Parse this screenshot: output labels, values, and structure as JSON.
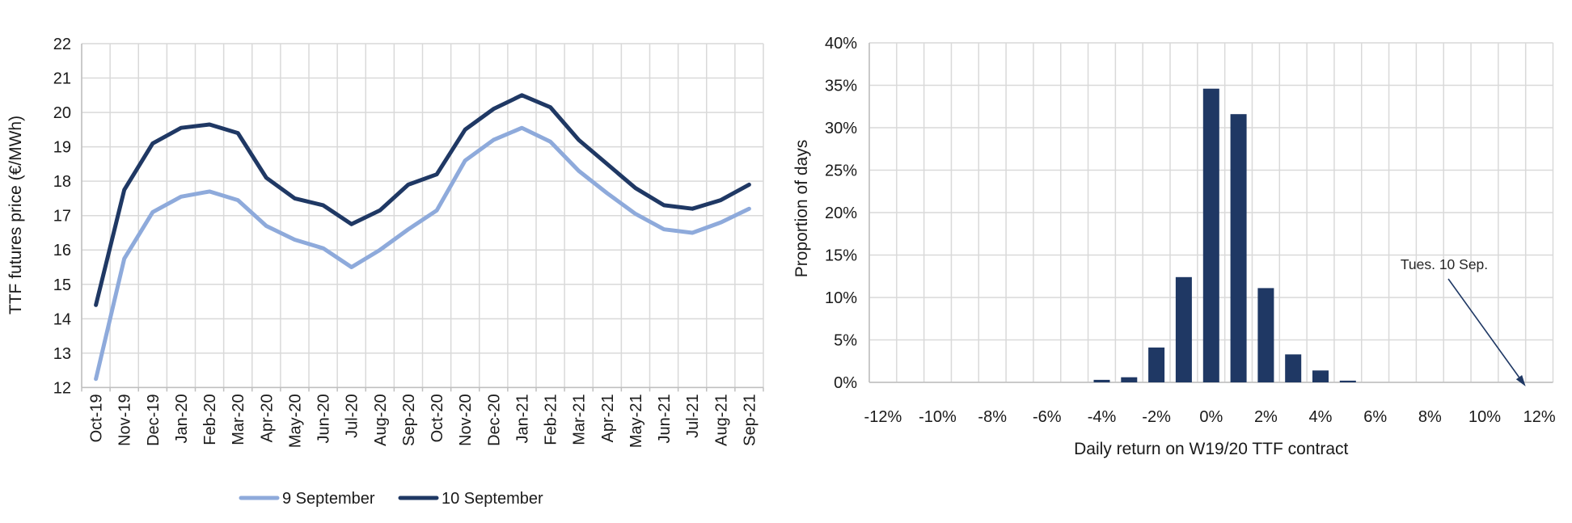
{
  "page": {
    "background": "#FFFFFF"
  },
  "colors": {
    "navy": "#1F3864",
    "light_blue": "#8EAADB",
    "gridline": "#D9D9D9",
    "axis": "#BFBFBF",
    "text": "#1A1A1A",
    "annotation_text": "#262626"
  },
  "chart_data": [
    {
      "type": "line",
      "name": "ttf-futures-price",
      "title": "",
      "xlabel": "",
      "ylabel": "TTF futures price (€/MWh)",
      "ylim": [
        12,
        22
      ],
      "y_tick_step": 1,
      "grid": true,
      "legend_position": "bottom",
      "categories": [
        "Oct-19",
        "Nov-19",
        "Dec-19",
        "Jan-20",
        "Feb-20",
        "Mar-20",
        "Apr-20",
        "May-20",
        "Jun-20",
        "Jul-20",
        "Aug-20",
        "Sep-20",
        "Oct-20",
        "Nov-20",
        "Dec-20",
        "Jan-21",
        "Feb-21",
        "Mar-21",
        "Apr-21",
        "May-21",
        "Jun-21",
        "Jul-21",
        "Aug-21",
        "Sep-21"
      ],
      "series": [
        {
          "name": "9 September",
          "color_key": "light_blue",
          "values": [
            12.25,
            15.75,
            17.1,
            17.55,
            17.7,
            17.45,
            16.7,
            16.3,
            16.05,
            15.5,
            16.0,
            16.6,
            17.15,
            18.6,
            19.2,
            19.55,
            19.15,
            18.3,
            17.65,
            17.05,
            16.6,
            16.5,
            16.8,
            17.2
          ]
        },
        {
          "name": "10 September",
          "color_key": "navy",
          "values": [
            14.4,
            17.75,
            19.1,
            19.55,
            19.65,
            19.4,
            18.1,
            17.5,
            17.3,
            16.75,
            17.15,
            17.9,
            18.2,
            19.5,
            20.1,
            20.5,
            20.15,
            19.2,
            18.5,
            17.8,
            17.3,
            17.2,
            17.45,
            17.9
          ]
        }
      ]
    },
    {
      "type": "bar",
      "name": "daily-return-histogram",
      "title": "",
      "xlabel": "Daily return on W19/20 TTF contract",
      "ylabel": "Proportion of days",
      "ylim": [
        0,
        40
      ],
      "y_tick_step": 5,
      "y_tick_suffix": "%",
      "grid": true,
      "x": [
        -12,
        -11,
        -10,
        -9,
        -8,
        -7,
        -6,
        -5,
        -4,
        -3,
        -2,
        -1,
        0,
        1,
        2,
        3,
        4,
        5,
        6,
        7,
        8,
        9,
        10,
        11,
        12
      ],
      "values": [
        0,
        0,
        0,
        0,
        0,
        0,
        0,
        0,
        0.3,
        0.6,
        4.1,
        12.4,
        34.6,
        31.6,
        11.1,
        3.3,
        1.4,
        0.2,
        0,
        0,
        0,
        0,
        0,
        0,
        0
      ],
      "x_label_step": 2,
      "x_label_suffix": "%",
      "bar_color_key": "navy",
      "annotation": {
        "text": "Tues. 10 Sep.",
        "arrow_target_x": 11.5
      }
    }
  ]
}
